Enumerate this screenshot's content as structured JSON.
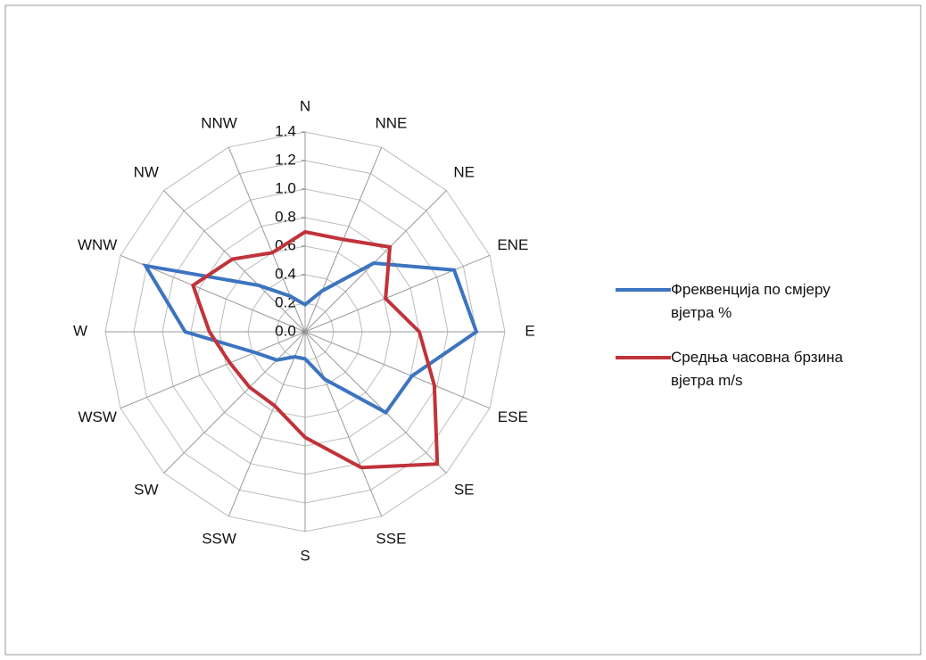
{
  "chart_data": {
    "type": "radar",
    "categories": [
      "N",
      "NNE",
      "NE",
      "ENE",
      "E",
      "ESE",
      "SE",
      "SSE",
      "S",
      "SSW",
      "SW",
      "WSW",
      "W",
      "WNW",
      "NW",
      "NNW"
    ],
    "series": [
      {
        "name": "Фреквенција по смјеру вјетра %",
        "color": "#3c74c0",
        "values": [
          0.19,
          0.31,
          0.68,
          1.13,
          1.2,
          0.81,
          0.8,
          0.36,
          0.19,
          0.19,
          0.28,
          0.38,
          0.84,
          1.21,
          0.46,
          0.27
        ]
      },
      {
        "name": "Средња часовна брзина вјетра m/s",
        "color": "#c0333a",
        "values": [
          0.7,
          0.7,
          0.84,
          0.61,
          0.8,
          0.98,
          1.31,
          1.03,
          0.74,
          0.56,
          0.55,
          0.57,
          0.67,
          0.85,
          0.72,
          0.6
        ]
      }
    ],
    "ylim": [
      0,
      1.4
    ],
    "yticks": [
      {
        "value": 0,
        "label": "0.0"
      },
      0.2,
      0.4,
      0.6,
      0.8,
      {
        "value": 1,
        "label": "1.0"
      },
      1.2,
      1.4
    ],
    "grid": true,
    "legend": "right"
  }
}
